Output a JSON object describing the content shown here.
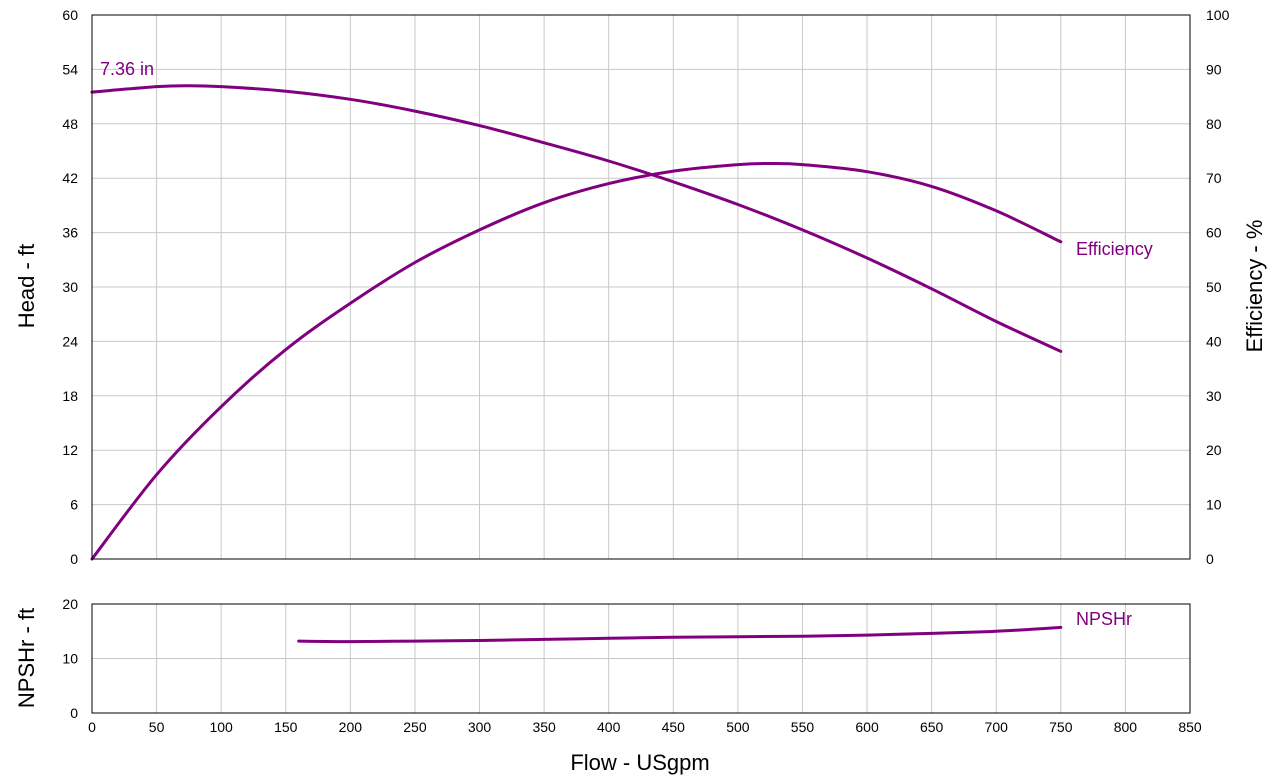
{
  "chart_data": [
    {
      "type": "line",
      "panel": "head-efficiency",
      "xlabel": "",
      "ylabel": "Head - ft",
      "y2label": "Efficiency - %",
      "xlim": [
        0,
        850
      ],
      "ylim": [
        0,
        60
      ],
      "y2lim": [
        0,
        100
      ],
      "x_ticks": [
        "0",
        "50",
        "100",
        "150",
        "200",
        "250",
        "300",
        "350",
        "400",
        "450",
        "500",
        "550",
        "600",
        "650",
        "700",
        "750",
        "800",
        "850"
      ],
      "y_ticks": [
        "0",
        "6",
        "12",
        "18",
        "24",
        "30",
        "36",
        "42",
        "48",
        "54",
        "60"
      ],
      "y2_ticks": [
        "0",
        "10",
        "20",
        "30",
        "40",
        "50",
        "60",
        "70",
        "80",
        "90",
        "100"
      ],
      "grid": true,
      "curve_color": "#800080",
      "series": [
        {
          "name": "7.36 in",
          "axis": "left",
          "x": [
            0,
            50,
            75,
            100,
            150,
            200,
            250,
            300,
            350,
            400,
            450,
            500,
            550,
            600,
            650,
            700,
            750
          ],
          "y": [
            51.5,
            52.1,
            52.2,
            52.1,
            51.6,
            50.7,
            49.4,
            47.8,
            45.9,
            43.9,
            41.6,
            39.1,
            36.3,
            33.2,
            29.8,
            26.2,
            22.9
          ]
        },
        {
          "name": "Efficiency",
          "axis": "right",
          "x": [
            0,
            50,
            100,
            150,
            200,
            250,
            300,
            350,
            400,
            450,
            500,
            525,
            550,
            600,
            650,
            700,
            750
          ],
          "y": [
            0,
            15.5,
            28,
            38.5,
            47,
            54.5,
            60.5,
            65.5,
            69,
            71.3,
            72.5,
            72.7,
            72.5,
            71.2,
            68.5,
            64,
            58.3
          ]
        }
      ]
    },
    {
      "type": "line",
      "panel": "npshr",
      "xlabel": "Flow - USgpm",
      "ylabel": "NPSHr - ft",
      "xlim": [
        0,
        850
      ],
      "ylim": [
        0,
        20
      ],
      "x_ticks": [
        "0",
        "50",
        "100",
        "150",
        "200",
        "250",
        "300",
        "350",
        "400",
        "450",
        "500",
        "550",
        "600",
        "650",
        "700",
        "750",
        "800",
        "850"
      ],
      "y_ticks": [
        "0",
        "10",
        "20"
      ],
      "grid": true,
      "curve_color": "#800080",
      "series": [
        {
          "name": "NPSHr",
          "x": [
            160,
            200,
            250,
            300,
            350,
            400,
            450,
            500,
            550,
            600,
            650,
            700,
            750
          ],
          "y": [
            13.2,
            13.1,
            13.2,
            13.3,
            13.5,
            13.7,
            13.9,
            14.0,
            14.1,
            14.3,
            14.6,
            15.0,
            15.7
          ]
        }
      ]
    }
  ]
}
